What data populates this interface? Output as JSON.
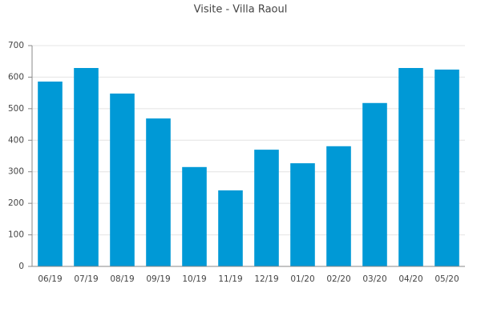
{
  "chart_data": {
    "type": "bar",
    "title": "Visite - Villa Raoul",
    "categories": [
      "06/19",
      "07/19",
      "08/19",
      "09/19",
      "10/19",
      "11/19",
      "12/19",
      "01/20",
      "02/20",
      "03/20",
      "04/20",
      "05/20"
    ],
    "values": [
      586,
      629,
      548,
      469,
      315,
      241,
      370,
      327,
      381,
      518,
      629,
      624
    ],
    "color": "#0099d6",
    "ylim": [
      0,
      700
    ],
    "yticks": [
      0,
      100,
      200,
      300,
      400,
      500,
      600,
      700
    ],
    "grid": true
  }
}
